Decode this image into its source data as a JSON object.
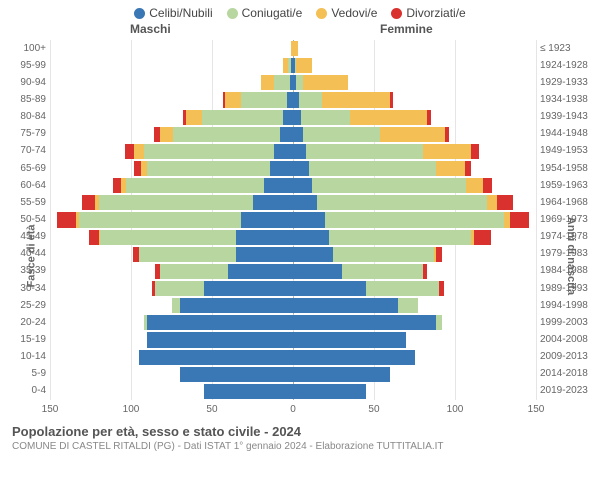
{
  "legend": [
    {
      "label": "Celibi/Nubili",
      "color": "#3a77b5"
    },
    {
      "label": "Coniugati/e",
      "color": "#b8d7a0"
    },
    {
      "label": "Vedovi/e",
      "color": "#f4c056"
    },
    {
      "label": "Divorziati/e",
      "color": "#d9322e"
    }
  ],
  "headers": {
    "m": "Maschi",
    "f": "Femmine"
  },
  "axis": {
    "left_title": "Fasce di età",
    "right_title": "Anni di nascita",
    "xmax": 150,
    "xticks": [
      150,
      100,
      50,
      0,
      50,
      100,
      150
    ]
  },
  "colors": {
    "single": "#3a77b5",
    "married": "#b8d7a0",
    "widowed": "#f4c056",
    "divorced": "#d9322e",
    "grid": "#e5e5e5",
    "zero": "#a8b5a0",
    "bg": "#ffffff"
  },
  "ages": [
    {
      "age": "0-4",
      "birth": "2019-2023",
      "m": {
        "s": 55,
        "c": 0,
        "w": 0,
        "d": 0
      },
      "f": {
        "s": 45,
        "c": 0,
        "w": 0,
        "d": 0
      }
    },
    {
      "age": "5-9",
      "birth": "2014-2018",
      "m": {
        "s": 70,
        "c": 0,
        "w": 0,
        "d": 0
      },
      "f": {
        "s": 60,
        "c": 0,
        "w": 0,
        "d": 0
      }
    },
    {
      "age": "10-14",
      "birth": "2009-2013",
      "m": {
        "s": 95,
        "c": 0,
        "w": 0,
        "d": 0
      },
      "f": {
        "s": 75,
        "c": 0,
        "w": 0,
        "d": 0
      }
    },
    {
      "age": "15-19",
      "birth": "2004-2008",
      "m": {
        "s": 90,
        "c": 0,
        "w": 0,
        "d": 0
      },
      "f": {
        "s": 70,
        "c": 0,
        "w": 0,
        "d": 0
      }
    },
    {
      "age": "20-24",
      "birth": "1999-2003",
      "m": {
        "s": 90,
        "c": 2,
        "w": 0,
        "d": 0
      },
      "f": {
        "s": 88,
        "c": 4,
        "w": 0,
        "d": 0
      }
    },
    {
      "age": "25-29",
      "birth": "1994-1998",
      "m": {
        "s": 70,
        "c": 5,
        "w": 0,
        "d": 0
      },
      "f": {
        "s": 65,
        "c": 12,
        "w": 0,
        "d": 0
      }
    },
    {
      "age": "30-34",
      "birth": "1989-1993",
      "m": {
        "s": 55,
        "c": 30,
        "w": 0,
        "d": 2
      },
      "f": {
        "s": 45,
        "c": 45,
        "w": 0,
        "d": 3
      }
    },
    {
      "age": "35-39",
      "birth": "1984-1988",
      "m": {
        "s": 40,
        "c": 42,
        "w": 0,
        "d": 3
      },
      "f": {
        "s": 30,
        "c": 50,
        "w": 0,
        "d": 3
      }
    },
    {
      "age": "40-44",
      "birth": "1979-1983",
      "m": {
        "s": 35,
        "c": 60,
        "w": 0,
        "d": 4
      },
      "f": {
        "s": 25,
        "c": 62,
        "w": 1,
        "d": 4
      }
    },
    {
      "age": "45-49",
      "birth": "1974-1978",
      "m": {
        "s": 35,
        "c": 84,
        "w": 1,
        "d": 6
      },
      "f": {
        "s": 22,
        "c": 88,
        "w": 2,
        "d": 10
      }
    },
    {
      "age": "50-54",
      "birth": "1969-1973",
      "m": {
        "s": 32,
        "c": 100,
        "w": 2,
        "d": 12
      },
      "f": {
        "s": 20,
        "c": 110,
        "w": 4,
        "d": 12
      }
    },
    {
      "age": "55-59",
      "birth": "1964-1968",
      "m": {
        "s": 25,
        "c": 95,
        "w": 2,
        "d": 8
      },
      "f": {
        "s": 15,
        "c": 105,
        "w": 6,
        "d": 10
      }
    },
    {
      "age": "60-64",
      "birth": "1959-1963",
      "m": {
        "s": 18,
        "c": 85,
        "w": 3,
        "d": 5
      },
      "f": {
        "s": 12,
        "c": 95,
        "w": 10,
        "d": 6
      }
    },
    {
      "age": "65-69",
      "birth": "1954-1958",
      "m": {
        "s": 14,
        "c": 76,
        "w": 4,
        "d": 4
      },
      "f": {
        "s": 10,
        "c": 78,
        "w": 18,
        "d": 4
      }
    },
    {
      "age": "70-74",
      "birth": "1949-1953",
      "m": {
        "s": 12,
        "c": 80,
        "w": 6,
        "d": 6
      },
      "f": {
        "s": 8,
        "c": 72,
        "w": 30,
        "d": 5
      }
    },
    {
      "age": "75-79",
      "birth": "1944-1948",
      "m": {
        "s": 8,
        "c": 66,
        "w": 8,
        "d": 4
      },
      "f": {
        "s": 6,
        "c": 48,
        "w": 40,
        "d": 2
      }
    },
    {
      "age": "80-84",
      "birth": "1939-1943",
      "m": {
        "s": 6,
        "c": 50,
        "w": 10,
        "d": 2
      },
      "f": {
        "s": 5,
        "c": 30,
        "w": 48,
        "d": 2
      }
    },
    {
      "age": "85-89",
      "birth": "1934-1938",
      "m": {
        "s": 4,
        "c": 28,
        "w": 10,
        "d": 1
      },
      "f": {
        "s": 4,
        "c": 14,
        "w": 42,
        "d": 2
      }
    },
    {
      "age": "90-94",
      "birth": "1929-1933",
      "m": {
        "s": 2,
        "c": 10,
        "w": 8,
        "d": 0
      },
      "f": {
        "s": 2,
        "c": 4,
        "w": 28,
        "d": 0
      }
    },
    {
      "age": "95-99",
      "birth": "1924-1928",
      "m": {
        "s": 1,
        "c": 2,
        "w": 3,
        "d": 0
      },
      "f": {
        "s": 1,
        "c": 1,
        "w": 10,
        "d": 0
      }
    },
    {
      "age": "100+",
      "birth": "≤ 1923",
      "m": {
        "s": 0,
        "c": 0,
        "w": 1,
        "d": 0
      },
      "f": {
        "s": 0,
        "c": 0,
        "w": 3,
        "d": 0
      }
    }
  ],
  "footer": {
    "title": "Popolazione per età, sesso e stato civile - 2024",
    "sub": "COMUNE DI CASTEL RITALDI (PG) - Dati ISTAT 1° gennaio 2024 - Elaborazione TUTTITALIA.IT"
  }
}
